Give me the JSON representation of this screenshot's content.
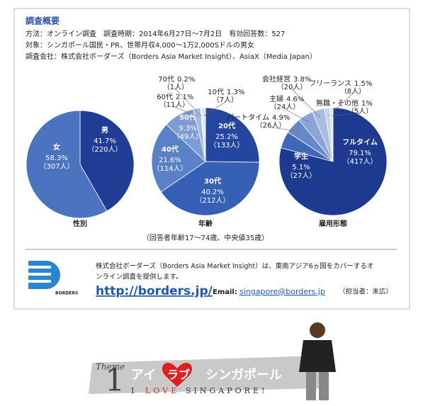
{
  "header": {
    "title": "調査概要",
    "lines": [
      "方法：オンライン調査　調査時期：2014年6月27日〜7月2日　有効回答数：527",
      "対象：シンガポール国民・PR、世帯月収4,000〜1万2,000Sドルの男女",
      "調査会社：株式会社ボーダーズ（Borders Asia Market Insight）、AsiaX（Media Japan）"
    ]
  },
  "chart_data": [
    {
      "type": "pie",
      "title": "性別",
      "categories": [
        "男",
        "女"
      ],
      "values": [
        41.7,
        58.3
      ],
      "value_labels": [
        "41.7%",
        "58.3%"
      ],
      "counts": [
        220,
        307
      ],
      "count_labels": [
        "（220人）",
        "（307人）"
      ],
      "colors": [
        "#1f3d95",
        "#4a73c0"
      ]
    },
    {
      "type": "pie",
      "title": "年齢",
      "note": "（回答者年齢17〜74歳、中央値35歳）",
      "categories": [
        "20代",
        "30代",
        "40代",
        "50代",
        "60代",
        "70代",
        "10代"
      ],
      "values": [
        25.2,
        40.2,
        21.6,
        9.3,
        2.1,
        0.2,
        1.3
      ],
      "value_labels": [
        "25.2%",
        "40.2%",
        "21.6%",
        "9.3%",
        "2.1%",
        "0.2%",
        "1.3%"
      ],
      "counts": [
        133,
        212,
        114,
        49,
        11,
        1,
        7
      ],
      "count_labels": [
        "（133人）",
        "（212人）",
        "（114人）",
        "（49人）",
        "（11人）",
        "（1人）",
        "（7人）"
      ],
      "colors": [
        "#2546a0",
        "#3660b5",
        "#5a80c7",
        "#7e9cd4",
        "#a2b8e0",
        "#c2d0eb",
        "#dfe6f4"
      ]
    },
    {
      "type": "pie",
      "title": "雇用形態",
      "categories": [
        "フルタイム",
        "学生",
        "パートタイム",
        "主婦",
        "会社経営",
        "フリーランス",
        "無職・その他"
      ],
      "values": [
        79.1,
        5.1,
        4.9,
        4.6,
        3.8,
        1.5,
        1
      ],
      "value_labels": [
        "79.1%",
        "5.1%",
        "4.9%",
        "4.6%",
        "3.8%",
        "1.5%",
        "1%"
      ],
      "counts": [
        417,
        27,
        26,
        24,
        20,
        8,
        5
      ],
      "count_labels": [
        "（417人）",
        "（27人）",
        "（26人）",
        "（24人）",
        "（20人）",
        "（8人）",
        "（5人）"
      ],
      "colors": [
        "#1d3a90",
        "#4068b9",
        "#6488cb",
        "#88a4d8",
        "#a8bde2",
        "#c4d2ec",
        "#e0e8f5"
      ]
    }
  ],
  "company": {
    "logo": "BORDERS",
    "lines": [
      "株式会社ボーダーズ（Borders Asia Market Insight）は、東南アジア6ヵ国をカバーするオ",
      "ンライン調査を提供します。"
    ],
    "url": "http://borders.jp/",
    "email_label": "Email:",
    "email": "singapore@borders.jp",
    "contact": "（担当者：末広）"
  },
  "banner": {
    "theme": "Theme",
    "number": "1",
    "title": [
      "アイ",
      "ラブ",
      "シンガポール"
    ],
    "subtitle": [
      "I",
      "LOVE",
      "SINGAPORE!"
    ]
  }
}
